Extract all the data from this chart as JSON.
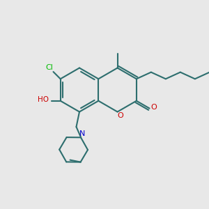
{
  "bg_color": "#e8e8e8",
  "bond_color": "#2d6e6e",
  "bond_width": 1.5,
  "atom_colors": {
    "Cl": "#00bb00",
    "O": "#cc0000",
    "N": "#0000cc",
    "default": "#2d6e6e"
  },
  "fig_bg": "#e8e8e8"
}
